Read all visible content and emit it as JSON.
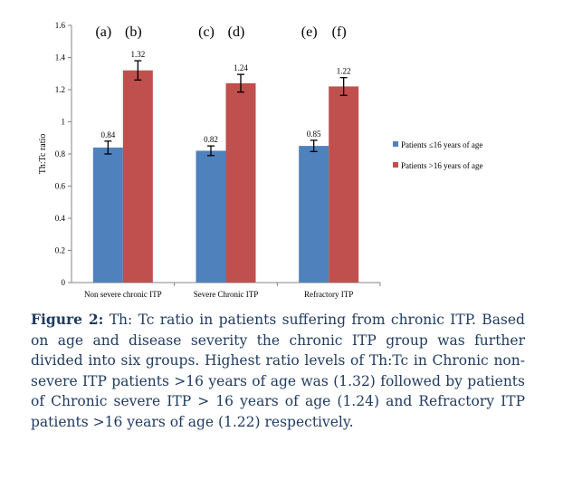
{
  "chart_data": {
    "type": "bar",
    "categories": [
      "Non severe chronic ITP",
      "Severe Chronic ITP",
      "Refractory ITP"
    ],
    "series": [
      {
        "name": "Patients ≤16 years of age",
        "values": [
          0.84,
          0.82,
          0.85
        ],
        "errors": [
          0.04,
          0.03,
          0.035
        ],
        "color": "#4f81bd"
      },
      {
        "name": "Patients >16 years of age",
        "values": [
          1.32,
          1.24,
          1.22
        ],
        "errors": [
          0.06,
          0.055,
          0.055
        ],
        "color": "#c0504d"
      }
    ],
    "data_labels": [
      [
        "0.84",
        "1.32"
      ],
      [
        "0.82",
        "1.24"
      ],
      [
        "0.85",
        "1.22"
      ]
    ],
    "panel_labels": [
      [
        "(a)",
        "(b)"
      ],
      [
        "(c)",
        "(d)"
      ],
      [
        "(e)",
        "(f)"
      ]
    ],
    "ylabel": "Th:Tc ratio",
    "ylim": [
      0,
      1.6
    ],
    "yticks": [
      "0",
      "0.2",
      "0.4",
      "0.6",
      "0.8",
      "1",
      "1.2",
      "1.4",
      "1.6"
    ],
    "grid": false,
    "legend_position": "right"
  },
  "caption": {
    "label": "Figure 2:",
    "text": " Th: Tc ratio in patients suffering from chronic ITP. Based on age and disease severity the chronic ITP group was further divided into six groups. Highest ratio levels of Th:Tc in Chronic non-severe ITP patients >16 years of age was (1.32) followed by patients of Chronic severe ITP  > 16 years of age (1.24) and Refractory ITP patients >16 years of age (1.22) respectively."
  }
}
